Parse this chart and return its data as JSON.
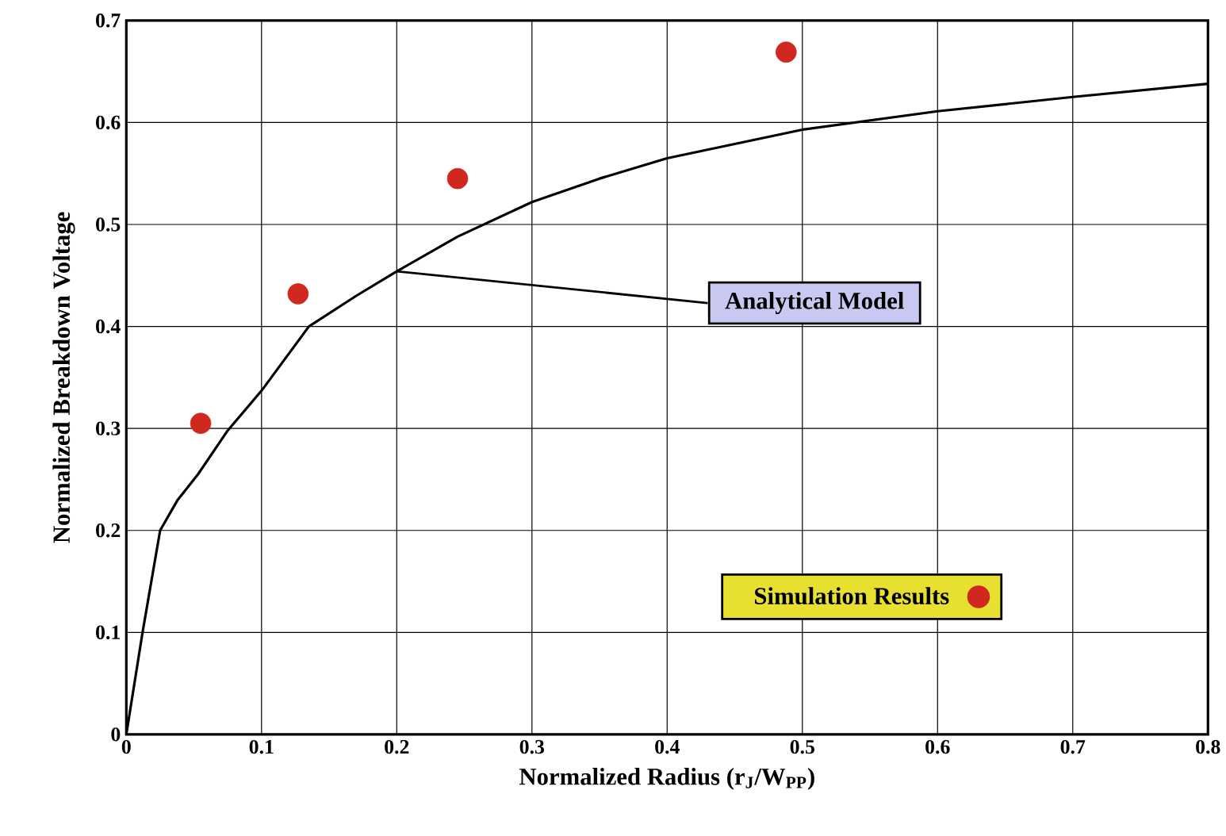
{
  "chart_data": {
    "type": "scatter",
    "xlabel": "Normalized Radius   (r$_{J}$/W$_{PP}$)",
    "ylabel": "Normalized Breakdown Voltage",
    "xlim": [
      0,
      0.8
    ],
    "xticks": [
      0,
      0.1,
      0.2,
      0.3,
      0.4,
      0.5,
      0.6,
      0.7,
      0.8
    ],
    "ylim": [
      0,
      0.7
    ],
    "yticks": [
      0,
      0.1,
      0.2,
      0.3,
      0.4,
      0.5,
      0.6,
      0.7
    ],
    "grid": true,
    "legend": "bottom right",
    "series": [
      {
        "name": "Simulation Results",
        "marker": "circle",
        "color": "#d0281e",
        "x": [
          0.055,
          0.127,
          0.245,
          0.488
        ],
        "values": [
          0.305,
          0.432,
          0.545,
          0.669
        ]
      },
      {
        "name": "Analytical Model",
        "type": "line",
        "marker": "none",
        "line_style": "solid",
        "color": "#000000",
        "x": [
          0,
          0.012,
          0.025,
          0.038,
          0.053,
          0.075,
          0.1,
          0.135,
          0.17,
          0.2,
          0.245,
          0.3,
          0.35,
          0.4,
          0.5,
          0.6,
          0.7,
          0.8
        ],
        "values": [
          0,
          0.1,
          0.2,
          0.23,
          0.255,
          0.298,
          0.337,
          0.4,
          0.43,
          0.454,
          0.488,
          0.522,
          0.545,
          0.565,
          0.593,
          0.611,
          0.625,
          0.638
        ]
      }
    ]
  }
}
